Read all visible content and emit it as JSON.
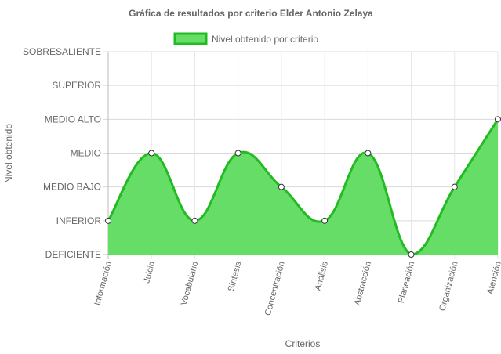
{
  "chart_data": {
    "type": "area",
    "title": "Gráfica de resultados por criterio Elder Antonio Zelaya",
    "xlabel": "Criterios",
    "ylabel": "Nivel obtenido",
    "legend_position": "top",
    "y_levels": [
      "DEFICIENTE",
      "INFERIOR",
      "MEDIO BAJO",
      "MEDIO",
      "MEDIO ALTO",
      "SUPERIOR",
      "SOBRESALIENTE"
    ],
    "categories": [
      "Información",
      "Juicio",
      "Vocabulario",
      "Síntesis",
      "Concentración",
      "Análisis",
      "Abstracción",
      "Planeación",
      "Organización",
      "Atención"
    ],
    "series": [
      {
        "name": "Nivel obtenido por criterio",
        "values": [
          "INFERIOR",
          "MEDIO",
          "INFERIOR",
          "MEDIO",
          "MEDIO BAJO",
          "INFERIOR",
          "MEDIO",
          "DEFICIENTE",
          "MEDIO BAJO",
          "MEDIO ALTO"
        ],
        "fill_color": "#66dd66",
        "line_color": "#22bb22"
      }
    ],
    "grid": true
  }
}
